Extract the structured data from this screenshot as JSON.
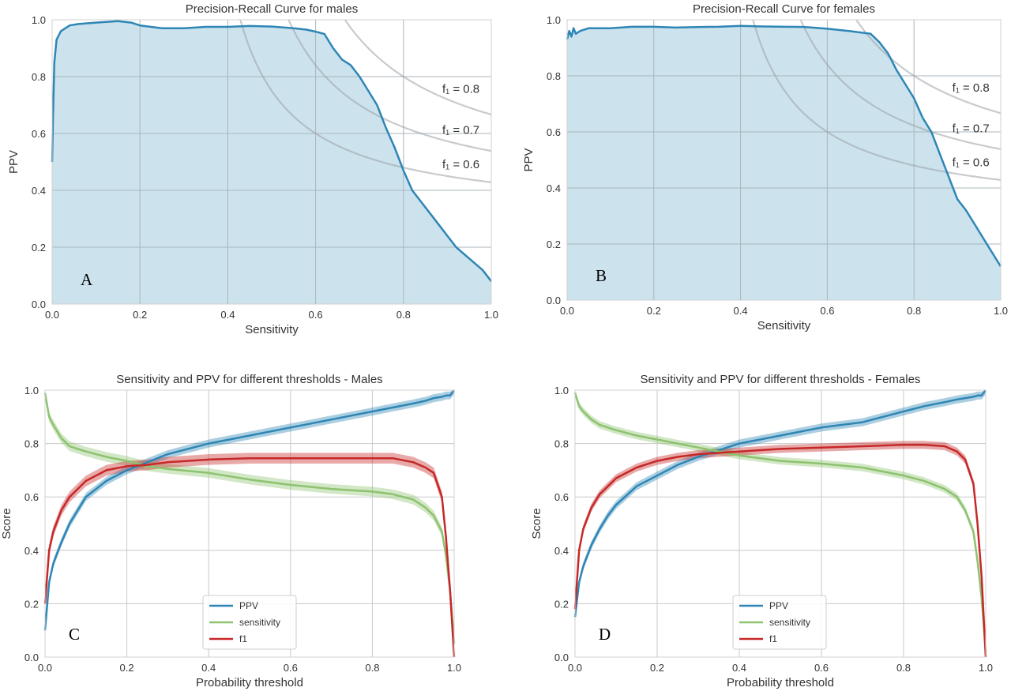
{
  "chart_data": [
    {
      "id": "A",
      "type": "area",
      "title": "Precision-Recall Curve for males",
      "xlabel": "Sensitivity",
      "ylabel": "PPV",
      "xlim": [
        0,
        1
      ],
      "ylim": [
        0,
        1
      ],
      "xticks": [
        "0.0",
        "0.2",
        "0.4",
        "0.6",
        "0.8",
        "1.0"
      ],
      "yticks": [
        "0.0",
        "0.2",
        "0.4",
        "0.6",
        "0.8",
        "1.0"
      ],
      "grid": true,
      "panel_letter": "A",
      "colors": {
        "line": "#2e86b5",
        "fill": "#cce3ee",
        "iso": "#9aa0a6"
      },
      "iso_f1": [
        {
          "f": 0.8,
          "label": "f₁ = 0.8"
        },
        {
          "f": 0.7,
          "label": "f₁ = 0.7"
        },
        {
          "f": 0.6,
          "label": "f₁ = 0.6"
        }
      ],
      "series": [
        {
          "x": [
            0.0,
            0.002,
            0.005,
            0.01,
            0.02,
            0.04,
            0.06,
            0.1,
            0.15,
            0.18,
            0.2,
            0.25,
            0.3,
            0.35,
            0.4,
            0.45,
            0.5,
            0.55,
            0.58,
            0.6,
            0.62,
            0.64,
            0.66,
            0.68,
            0.7,
            0.72,
            0.74,
            0.76,
            0.78,
            0.8,
            0.82,
            0.84,
            0.86,
            0.88,
            0.9,
            0.92,
            0.95,
            0.98,
            1.0
          ],
          "y": [
            0.5,
            0.66,
            0.85,
            0.93,
            0.96,
            0.98,
            0.985,
            0.99,
            0.995,
            0.99,
            0.98,
            0.97,
            0.97,
            0.975,
            0.975,
            0.978,
            0.976,
            0.97,
            0.965,
            0.958,
            0.95,
            0.9,
            0.86,
            0.84,
            0.8,
            0.75,
            0.7,
            0.62,
            0.55,
            0.47,
            0.4,
            0.36,
            0.32,
            0.28,
            0.24,
            0.2,
            0.16,
            0.12,
            0.08
          ]
        }
      ]
    },
    {
      "id": "B",
      "type": "area",
      "title": "Precision-Recall Curve for females",
      "xlabel": "Sensitivity",
      "ylabel": "PPV",
      "xlim": [
        0,
        1
      ],
      "ylim": [
        0,
        1
      ],
      "xticks": [
        "0.0",
        "0.2",
        "0.4",
        "0.6",
        "0.8",
        "1.0"
      ],
      "yticks": [
        "0.0",
        "0.2",
        "0.4",
        "0.6",
        "0.8",
        "1.0"
      ],
      "grid": true,
      "panel_letter": "B",
      "colors": {
        "line": "#2e86b5",
        "fill": "#cce3ee",
        "iso": "#9aa0a6"
      },
      "iso_f1": [
        {
          "f": 0.8,
          "label": "f₁ = 0.8"
        },
        {
          "f": 0.7,
          "label": "f₁ = 0.7"
        },
        {
          "f": 0.6,
          "label": "f₁ = 0.6"
        }
      ],
      "series": [
        {
          "x": [
            0.0,
            0.005,
            0.01,
            0.015,
            0.02,
            0.03,
            0.05,
            0.1,
            0.15,
            0.2,
            0.25,
            0.3,
            0.35,
            0.4,
            0.45,
            0.5,
            0.55,
            0.6,
            0.65,
            0.7,
            0.72,
            0.74,
            0.76,
            0.78,
            0.8,
            0.82,
            0.84,
            0.86,
            0.88,
            0.9,
            0.92,
            0.94,
            0.96,
            0.98,
            1.0
          ],
          "y": [
            0.93,
            0.96,
            0.94,
            0.97,
            0.95,
            0.96,
            0.97,
            0.97,
            0.975,
            0.975,
            0.972,
            0.974,
            0.975,
            0.978,
            0.976,
            0.975,
            0.974,
            0.968,
            0.96,
            0.95,
            0.92,
            0.88,
            0.82,
            0.77,
            0.72,
            0.65,
            0.6,
            0.52,
            0.44,
            0.36,
            0.32,
            0.27,
            0.22,
            0.17,
            0.12
          ]
        }
      ]
    },
    {
      "id": "C",
      "type": "line",
      "title": "Sensitivity and PPV for different thresholds - Males",
      "xlabel": "Probability threshold",
      "ylabel": "Score",
      "xlim": [
        0,
        1
      ],
      "ylim": [
        0,
        1
      ],
      "xticks": [
        "0.0",
        "0.2",
        "0.4",
        "0.6",
        "0.8",
        "1.0"
      ],
      "yticks": [
        "0.0",
        "0.2",
        "0.4",
        "0.6",
        "0.8",
        "1.0"
      ],
      "grid": true,
      "legend": "bottom-center",
      "panel_letter": "C",
      "x": [
        0.0,
        0.01,
        0.02,
        0.04,
        0.06,
        0.08,
        0.1,
        0.15,
        0.2,
        0.25,
        0.3,
        0.4,
        0.5,
        0.6,
        0.7,
        0.8,
        0.85,
        0.9,
        0.93,
        0.95,
        0.97,
        0.98,
        0.99,
        1.0
      ],
      "series": [
        {
          "name": "PPV",
          "color": "#2e86b5",
          "band": 0.015,
          "values": [
            0.1,
            0.28,
            0.35,
            0.43,
            0.5,
            0.55,
            0.6,
            0.66,
            0.7,
            0.73,
            0.76,
            0.8,
            0.83,
            0.86,
            0.89,
            0.92,
            0.935,
            0.95,
            0.96,
            0.97,
            0.975,
            0.98,
            0.98,
            1.0
          ]
        },
        {
          "name": "sensitivity",
          "color": "#8dc26f",
          "band": 0.018,
          "values": [
            0.99,
            0.9,
            0.87,
            0.82,
            0.79,
            0.78,
            0.77,
            0.75,
            0.735,
            0.715,
            0.705,
            0.69,
            0.665,
            0.645,
            0.63,
            0.62,
            0.61,
            0.59,
            0.56,
            0.53,
            0.47,
            0.38,
            0.25,
            0.05
          ]
        },
        {
          "name": "f1",
          "color": "#c62828",
          "band": 0.02,
          "values": [
            0.2,
            0.4,
            0.47,
            0.55,
            0.6,
            0.63,
            0.66,
            0.7,
            0.715,
            0.72,
            0.73,
            0.74,
            0.745,
            0.745,
            0.745,
            0.745,
            0.745,
            0.73,
            0.71,
            0.69,
            0.6,
            0.45,
            0.25,
            0.0
          ]
        }
      ]
    },
    {
      "id": "D",
      "type": "line",
      "title": "Sensitivity and PPV for different thresholds - Females",
      "xlabel": "Probability threshold",
      "ylabel": "Score",
      "xlim": [
        0,
        1
      ],
      "ylim": [
        0,
        1
      ],
      "xticks": [
        "0.0",
        "0.2",
        "0.4",
        "0.6",
        "0.8",
        "1.0"
      ],
      "yticks": [
        "0.0",
        "0.2",
        "0.4",
        "0.6",
        "0.8",
        "1.0"
      ],
      "grid": true,
      "legend": "bottom-center",
      "panel_letter": "D",
      "x": [
        0.0,
        0.01,
        0.02,
        0.04,
        0.06,
        0.08,
        0.1,
        0.15,
        0.2,
        0.25,
        0.3,
        0.4,
        0.5,
        0.6,
        0.7,
        0.8,
        0.85,
        0.9,
        0.93,
        0.95,
        0.97,
        0.98,
        0.99,
        1.0
      ],
      "series": [
        {
          "name": "PPV",
          "color": "#2e86b5",
          "band": 0.015,
          "values": [
            0.15,
            0.28,
            0.34,
            0.42,
            0.48,
            0.53,
            0.57,
            0.64,
            0.68,
            0.72,
            0.75,
            0.8,
            0.83,
            0.86,
            0.88,
            0.92,
            0.94,
            0.955,
            0.965,
            0.97,
            0.975,
            0.98,
            0.98,
            1.0
          ]
        },
        {
          "name": "sensitivity",
          "color": "#8dc26f",
          "band": 0.014,
          "values": [
            0.99,
            0.94,
            0.92,
            0.89,
            0.87,
            0.86,
            0.85,
            0.83,
            0.815,
            0.8,
            0.785,
            0.755,
            0.735,
            0.725,
            0.71,
            0.68,
            0.66,
            0.63,
            0.6,
            0.55,
            0.47,
            0.36,
            0.22,
            0.02
          ]
        },
        {
          "name": "f1",
          "color": "#c62828",
          "band": 0.015,
          "values": [
            0.18,
            0.4,
            0.48,
            0.56,
            0.61,
            0.64,
            0.67,
            0.71,
            0.735,
            0.75,
            0.76,
            0.77,
            0.78,
            0.785,
            0.79,
            0.795,
            0.795,
            0.79,
            0.77,
            0.74,
            0.65,
            0.5,
            0.3,
            0.0
          ]
        }
      ]
    }
  ]
}
